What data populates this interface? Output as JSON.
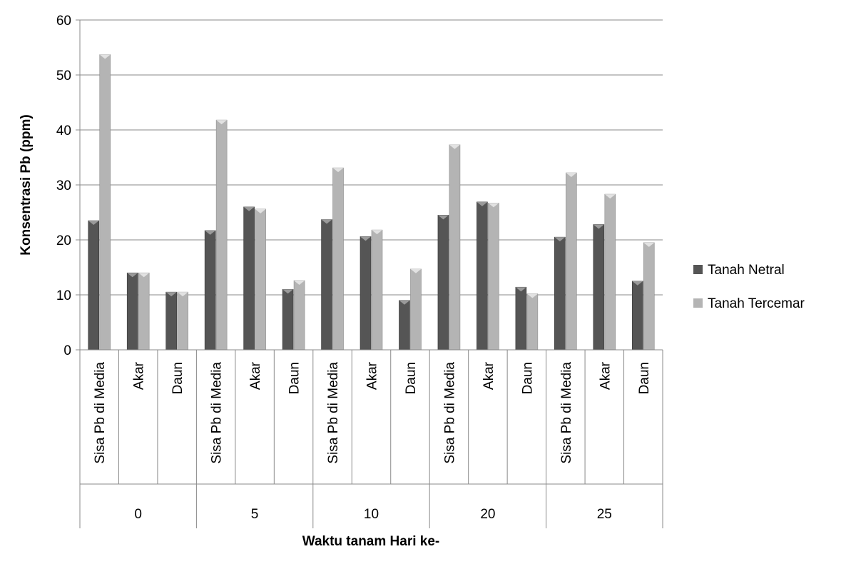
{
  "chart_data": {
    "type": "bar",
    "ylabel": "Konsentrasi Pb (ppm)",
    "xlabel": "Waktu tanam Hari ke-",
    "ylim": [
      0,
      60
    ],
    "yticks": [
      0,
      10,
      20,
      30,
      40,
      50,
      60
    ],
    "grid": true,
    "legend_position": "right",
    "groups": [
      "0",
      "5",
      "10",
      "20",
      "25"
    ],
    "categories": [
      "Sisa Pb di Media",
      "Akar",
      "Daun",
      "Sisa Pb di Media",
      "Akar",
      "Daun",
      "Sisa Pb di Media",
      "Akar",
      "Daun",
      "Sisa Pb di Media",
      "Akar",
      "Daun",
      "Sisa Pb di Media",
      "Akar",
      "Daun"
    ],
    "series": [
      {
        "name": "Tanah Netral",
        "color": "#555555",
        "values": [
          23.5,
          14.0,
          10.5,
          21.7,
          26.0,
          11.0,
          23.7,
          20.6,
          9.0,
          24.5,
          26.9,
          11.4,
          20.5,
          22.8,
          12.5
        ]
      },
      {
        "name": "Tanah Tercemar",
        "color": "#b4b4b4",
        "values": [
          53.7,
          14.0,
          10.5,
          41.8,
          25.6,
          12.6,
          33.1,
          21.8,
          14.7,
          37.3,
          26.7,
          10.2,
          32.2,
          28.3,
          19.5
        ]
      }
    ]
  }
}
